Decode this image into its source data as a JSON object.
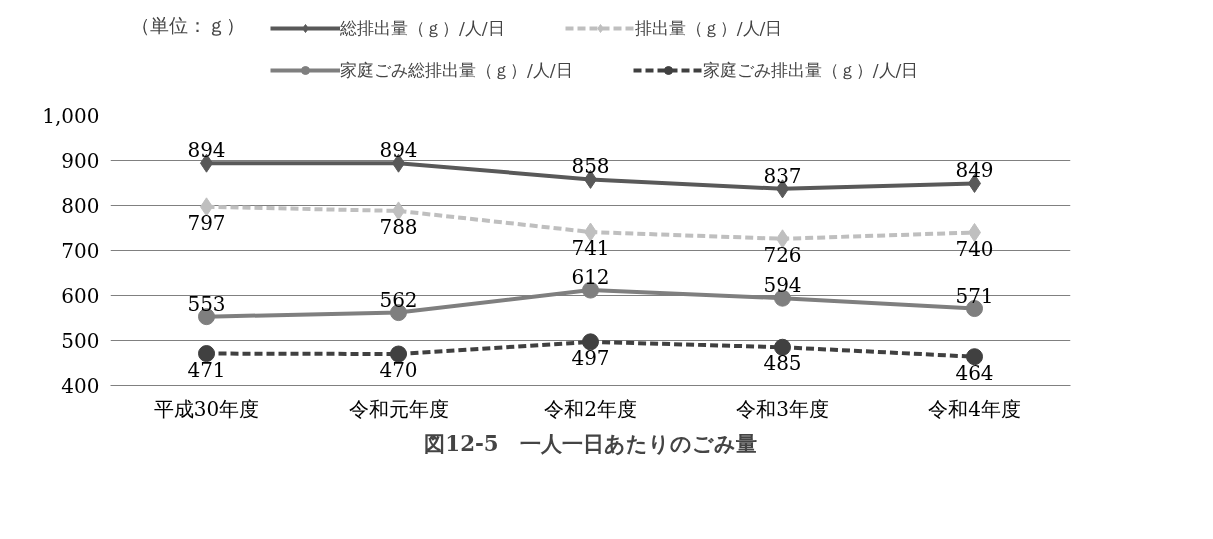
{
  "chart_data": {
    "type": "line",
    "title": "図12-5　一人一日あたりのごみ量",
    "annotations": [
      "（単位：ｇ）"
    ],
    "categories": [
      "平成30年度",
      "令和元年度",
      "令和2年度",
      "令和3年度",
      "令和4年度"
    ],
    "series": [
      {
        "name": "総排出量（ｇ）/人/日",
        "color": "#595959",
        "marker": "diamond",
        "line_style": "solid",
        "values": [
          894,
          894,
          858,
          837,
          849
        ]
      },
      {
        "name": "排出量（ｇ）/人/日",
        "color": "#bfbfbf",
        "marker": "diamond",
        "line_style": "dashed",
        "values": [
          797,
          788,
          741,
          726,
          740
        ]
      },
      {
        "name": "家庭ごみ総排出量（ｇ）/人/日",
        "color": "#7f7f7f",
        "marker": "circle",
        "line_style": "solid",
        "values": [
          553,
          562,
          612,
          594,
          571
        ]
      },
      {
        "name": "家庭ごみ排出量（ｇ）/人/日",
        "color": "#404040",
        "marker": "circle",
        "line_style": "dashed",
        "values": [
          471,
          470,
          497,
          485,
          464
        ]
      }
    ],
    "ylim": [
      400,
      1000
    ],
    "yticks": [
      400,
      500,
      600,
      700,
      800,
      900,
      {
        "value": 1000,
        "label": "1,000"
      }
    ],
    "grid": "y",
    "legend": "top",
    "data_labels": true
  }
}
